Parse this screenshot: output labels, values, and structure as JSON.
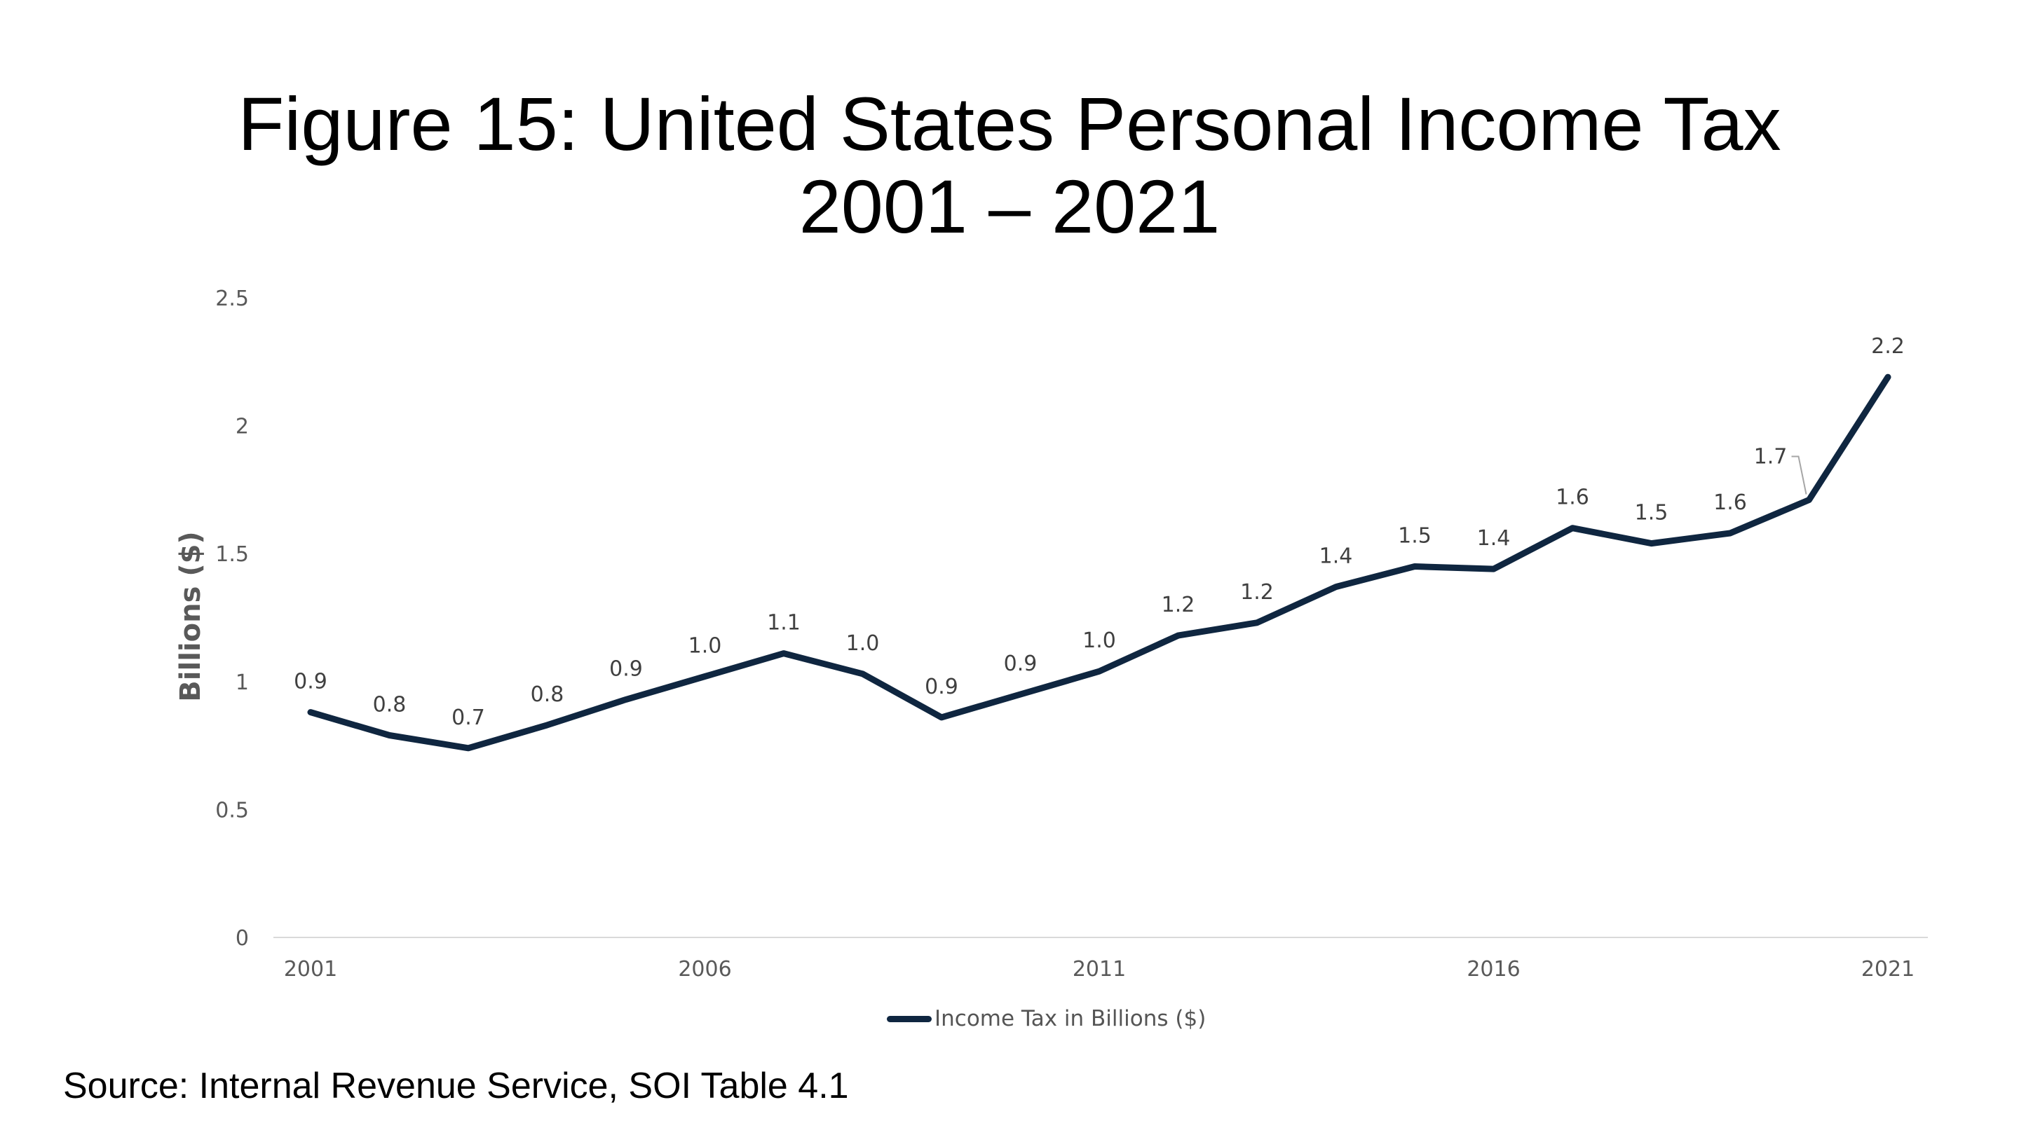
{
  "title_line1": "Figure 15: United States Personal Income Tax",
  "title_line2": "2001 – 2021",
  "source": "Source: Internal Revenue Service, SOI Table 4.1",
  "chart_data": {
    "type": "line",
    "ylabel": "Billions ($)",
    "xlabel": "",
    "ylim": [
      0,
      2.5
    ],
    "yticks": [
      "0",
      "0.5",
      "1",
      "1.5",
      "2",
      "2.5"
    ],
    "xtick_labels": [
      "2001",
      "2006",
      "2011",
      "2016",
      "2021"
    ],
    "x": [
      2001,
      2002,
      2003,
      2004,
      2005,
      2006,
      2007,
      2008,
      2009,
      2010,
      2011,
      2012,
      2013,
      2014,
      2015,
      2016,
      2017,
      2018,
      2019,
      2020,
      2021
    ],
    "series": [
      {
        "name": "Income Tax in Billions ($)",
        "color": "#0f2640",
        "values": [
          0.88,
          0.79,
          0.74,
          0.83,
          0.93,
          1.02,
          1.11,
          1.03,
          0.86,
          0.95,
          1.04,
          1.18,
          1.23,
          1.37,
          1.45,
          1.44,
          1.6,
          1.54,
          1.58,
          1.71,
          2.19
        ],
        "data_labels": [
          "0.9",
          "0.8",
          "0.7",
          "0.8",
          "0.9",
          "1.0",
          "1.1",
          "1.0",
          "0.9",
          "0.9",
          "1.0",
          "1.2",
          "1.2",
          "1.4",
          "1.5",
          "1.4",
          "1.6",
          "1.5",
          "1.6",
          "1.7",
          "2.2"
        ]
      }
    ],
    "grid": false,
    "legend_position": "bottom"
  }
}
